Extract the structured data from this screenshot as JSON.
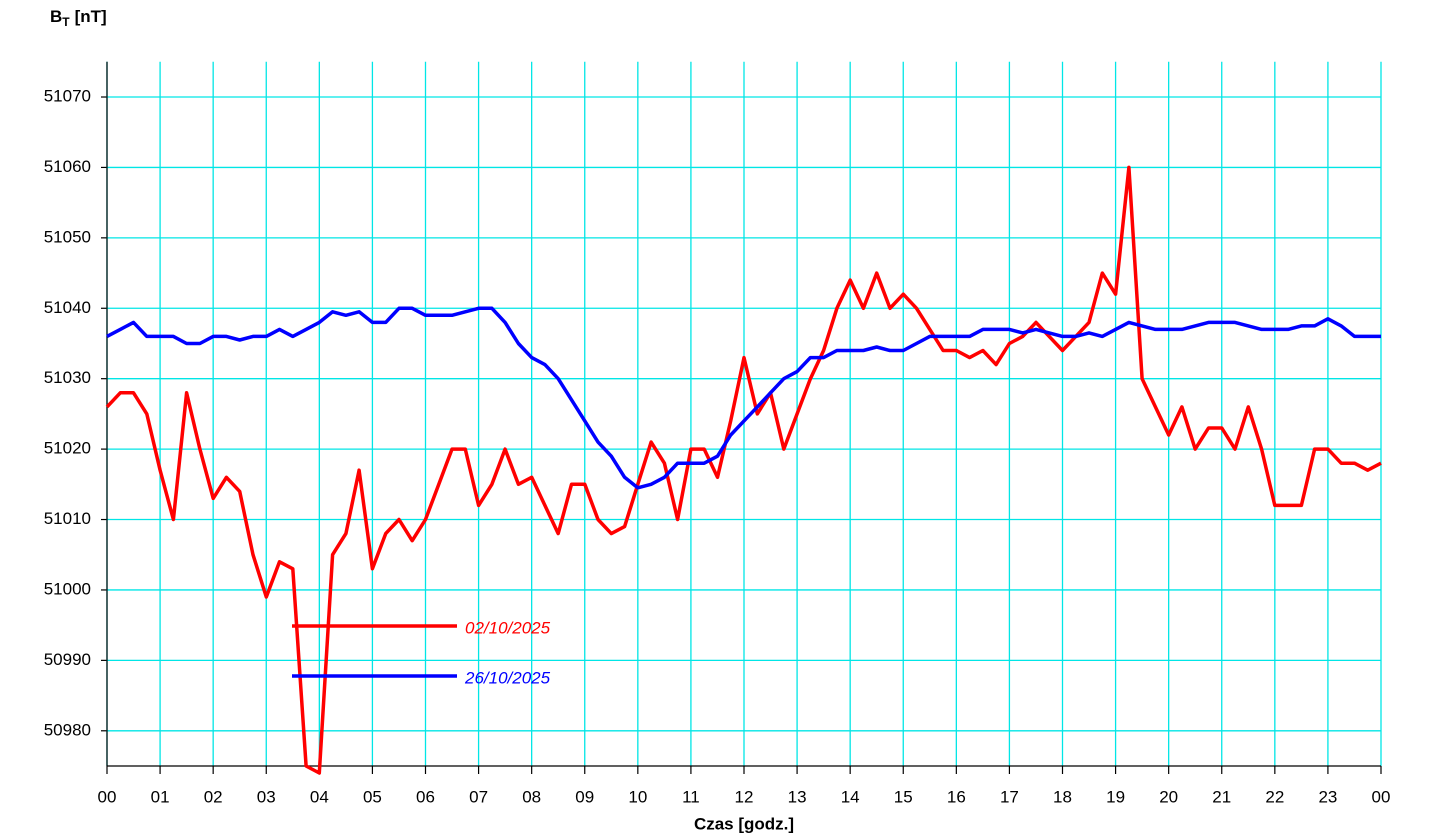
{
  "chart_data": {
    "type": "line",
    "y_label": {
      "symbol": "B",
      "subscript": "T",
      "unit": "[nT]"
    },
    "x_label": "Czas [godz.]",
    "x": [
      0,
      0.25,
      0.5,
      0.75,
      1,
      1.25,
      1.5,
      1.75,
      2,
      2.25,
      2.5,
      2.75,
      3,
      3.25,
      3.5,
      3.75,
      4,
      4.25,
      4.5,
      4.75,
      5,
      5.25,
      5.5,
      5.75,
      6,
      6.25,
      6.5,
      6.75,
      7,
      7.25,
      7.5,
      7.75,
      8,
      8.25,
      8.5,
      8.75,
      9,
      9.25,
      9.5,
      9.75,
      10,
      10.25,
      10.5,
      10.75,
      11,
      11.25,
      11.5,
      11.75,
      12,
      12.25,
      12.5,
      12.75,
      13,
      13.25,
      13.5,
      13.75,
      14,
      14.25,
      14.5,
      14.75,
      15,
      15.25,
      15.5,
      15.75,
      16,
      16.25,
      16.5,
      16.75,
      17,
      17.25,
      17.5,
      17.75,
      18,
      18.25,
      18.5,
      18.75,
      19,
      19.25,
      19.5,
      19.75,
      20,
      20.25,
      20.5,
      20.75,
      21,
      21.25,
      21.5,
      21.75,
      22,
      22.25,
      22.5,
      22.75,
      23,
      23.25,
      23.5,
      23.75,
      24
    ],
    "series": [
      {
        "name": "02/10/2025",
        "color": "#ff0000",
        "values": [
          51026,
          51028,
          51028,
          51025,
          51017,
          51010,
          51028,
          51020,
          51013,
          51016,
          51014,
          51005,
          50999,
          51004,
          51003,
          50975,
          50974,
          51005,
          51008,
          51017,
          51003,
          51008,
          51010,
          51007,
          51010,
          51015,
          51020,
          51020,
          51012,
          51015,
          51020,
          51015,
          51016,
          51012,
          51008,
          51015,
          51015,
          51010,
          51008,
          51009,
          51015,
          51021,
          51018,
          51010,
          51020,
          51020,
          51016,
          51024,
          51033,
          51025,
          51028,
          51020,
          51025,
          51030,
          51034,
          51040,
          51044,
          51040,
          51045,
          51040,
          51042,
          51040,
          51037,
          51034,
          51034,
          51033,
          51034,
          51032,
          51035,
          51036,
          51038,
          51036,
          51034,
          51036,
          51038,
          51045,
          51042,
          51060,
          51030,
          51026,
          51022,
          51026,
          51020,
          51023,
          51023,
          51020,
          51026,
          51020,
          51012,
          51012,
          51012,
          51020,
          51020,
          51018,
          51018,
          51017,
          51018
        ]
      },
      {
        "name": "26/10/2025",
        "color": "#0000ff",
        "values": [
          51036,
          51037,
          51038,
          51036,
          51036,
          51036,
          51035,
          51035,
          51036,
          51036,
          51035.5,
          51036,
          51036,
          51037,
          51036,
          51037,
          51038,
          51039.5,
          51039,
          51039.5,
          51038,
          51038,
          51040,
          51040,
          51039,
          51039,
          51039,
          51039.5,
          51040,
          51040,
          51038,
          51035,
          51033,
          51032,
          51030,
          51027,
          51024,
          51021,
          51019,
          51016,
          51014.5,
          51015,
          51016,
          51018,
          51018,
          51018,
          51019,
          51022,
          51024,
          51026,
          51028,
          51030,
          51031,
          51033,
          51033,
          51034,
          51034,
          51034,
          51034.5,
          51034,
          51034,
          51035,
          51036,
          51036,
          51036,
          51036,
          51037,
          51037,
          51037,
          51036.5,
          51037,
          51036.5,
          51036,
          51036,
          51036.5,
          51036,
          51037,
          51038,
          51037.5,
          51037,
          51037,
          51037,
          51037.5,
          51038,
          51038,
          51038,
          51037.5,
          51037,
          51037,
          51037,
          51037.5,
          51037.5,
          51038.5,
          51037.5,
          51036,
          51036,
          51036
        ]
      }
    ],
    "xlim": [
      0,
      24
    ],
    "xticks": [
      {
        "value": 0,
        "label": "00"
      },
      {
        "value": 1,
        "label": "01"
      },
      {
        "value": 2,
        "label": "02"
      },
      {
        "value": 3,
        "label": "03"
      },
      {
        "value": 4,
        "label": "04"
      },
      {
        "value": 5,
        "label": "05"
      },
      {
        "value": 6,
        "label": "06"
      },
      {
        "value": 7,
        "label": "07"
      },
      {
        "value": 8,
        "label": "08"
      },
      {
        "value": 9,
        "label": "09"
      },
      {
        "value": 10,
        "label": "10"
      },
      {
        "value": 11,
        "label": "11"
      },
      {
        "value": 12,
        "label": "12"
      },
      {
        "value": 13,
        "label": "13"
      },
      {
        "value": 14,
        "label": "14"
      },
      {
        "value": 15,
        "label": "15"
      },
      {
        "value": 16,
        "label": "16"
      },
      {
        "value": 17,
        "label": "17"
      },
      {
        "value": 18,
        "label": "18"
      },
      {
        "value": 19,
        "label": "19"
      },
      {
        "value": 20,
        "label": "20"
      },
      {
        "value": 21,
        "label": "21"
      },
      {
        "value": 22,
        "label": "22"
      },
      {
        "value": 23,
        "label": "23"
      },
      {
        "value": 24,
        "label": "00"
      }
    ],
    "ylim": [
      50975,
      51075
    ],
    "yticks": [
      50980,
      50990,
      51000,
      51010,
      51020,
      51030,
      51040,
      51050,
      51060,
      51070
    ],
    "grid": true,
    "grid_color": "#00e6e6"
  }
}
